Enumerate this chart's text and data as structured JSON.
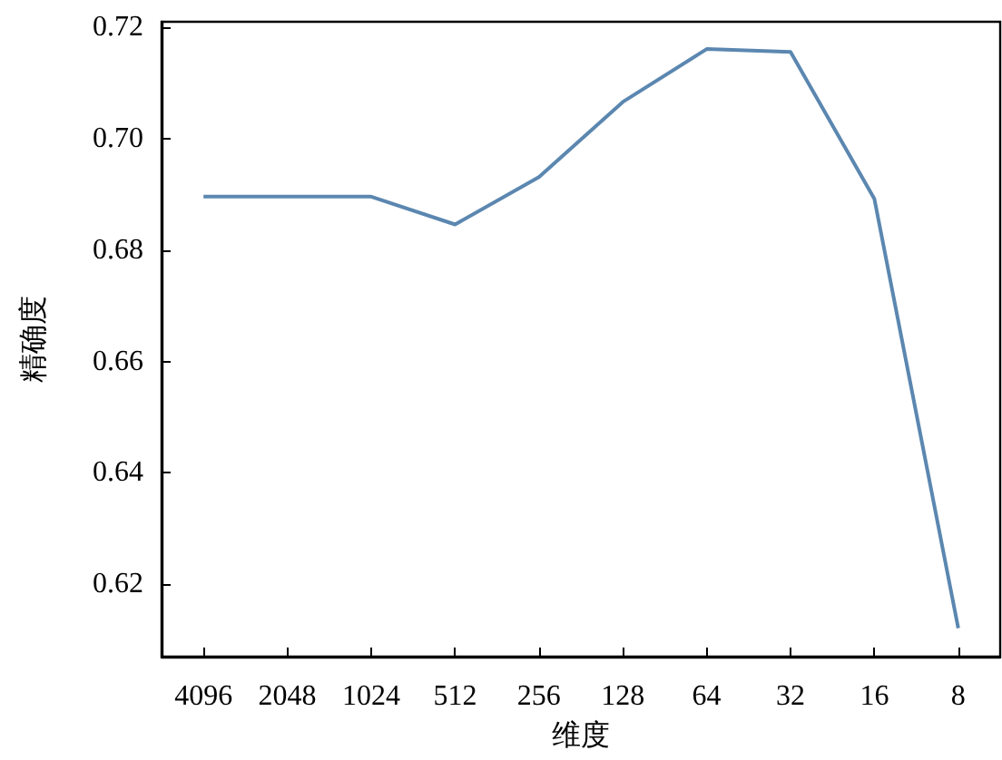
{
  "chart_data": {
    "type": "line",
    "xlabel": "维度",
    "ylabel": "精确度",
    "categories": [
      "4096",
      "2048",
      "1024",
      "512",
      "256",
      "128",
      "64",
      "32",
      "16",
      "8"
    ],
    "series": [
      {
        "color": "#5b87b0",
        "values": [
          0.6896,
          0.6896,
          0.6896,
          0.6846,
          0.6931,
          0.7066,
          0.7161,
          0.7156,
          0.6892,
          0.6121
        ]
      }
    ],
    "ylim": [
      0.607,
      0.721
    ],
    "yticks": [
      0.62,
      0.64,
      0.66,
      0.68,
      {
        "value": 0.7,
        "label": "0.70"
      },
      0.72
    ],
    "grid": false,
    "marker": "none",
    "line_style": "solid"
  }
}
